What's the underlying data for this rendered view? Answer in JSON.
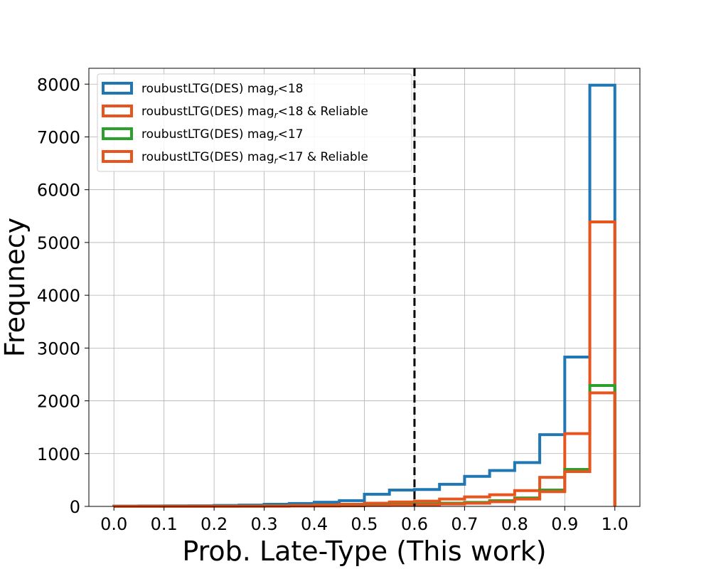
{
  "chart_data": {
    "type": "histogram",
    "title": "",
    "xlabel": "Prob. Late-Type (This work)",
    "ylabel": "Frequnecy",
    "xlim": [
      -0.05,
      1.05
    ],
    "ylim": [
      0,
      8300
    ],
    "xticks": [
      "0.0",
      "0.1",
      "0.2",
      "0.3",
      "0.4",
      "0.5",
      "0.6",
      "0.7",
      "0.8",
      "0.9",
      "1.0"
    ],
    "yticks": [
      "0",
      "1000",
      "2000",
      "3000",
      "4000",
      "5000",
      "6000",
      "7000",
      "8000"
    ],
    "grid": true,
    "legend_position": "top-left",
    "vline": {
      "x": 0.6,
      "style": "dashed",
      "color": "#000000"
    },
    "bin_edges": [
      0.0,
      0.05,
      0.1,
      0.15,
      0.2,
      0.25,
      0.3,
      0.35,
      0.4,
      0.45,
      0.5,
      0.55,
      0.6,
      0.65,
      0.7,
      0.75,
      0.8,
      0.85,
      0.9,
      0.95,
      1.0
    ],
    "series": [
      {
        "name": "roubustLTG(DES) mag",
        "name_sub": "r",
        "name_suffix": "<18",
        "color": "#1f77b4",
        "values": [
          5,
          8,
          10,
          12,
          18,
          25,
          40,
          55,
          80,
          110,
          230,
          310,
          320,
          420,
          570,
          680,
          830,
          1360,
          2830,
          7980
        ]
      },
      {
        "name": "roubustLTG(DES) mag",
        "name_sub": "r",
        "name_suffix": "<18 & Reliable",
        "color": "#e8541e",
        "values": [
          2,
          3,
          4,
          5,
          6,
          8,
          12,
          18,
          28,
          40,
          60,
          85,
          100,
          140,
          180,
          220,
          300,
          550,
          1380,
          5390
        ]
      },
      {
        "name": "roubustLTG(DES) mag",
        "name_sub": "r",
        "name_suffix": "<17",
        "color": "#2ca02c",
        "values": [
          1,
          1,
          2,
          2,
          3,
          4,
          6,
          8,
          12,
          16,
          25,
          35,
          45,
          60,
          75,
          110,
          160,
          310,
          700,
          2290
        ]
      },
      {
        "name": "roubustLTG(DES) mag",
        "name_sub": "r",
        "name_suffix": "<17 & Reliable",
        "color": "#e8541e",
        "values": [
          1,
          1,
          1,
          2,
          2,
          3,
          4,
          6,
          9,
          12,
          18,
          25,
          32,
          45,
          60,
          90,
          140,
          280,
          660,
          2150
        ]
      }
    ]
  }
}
